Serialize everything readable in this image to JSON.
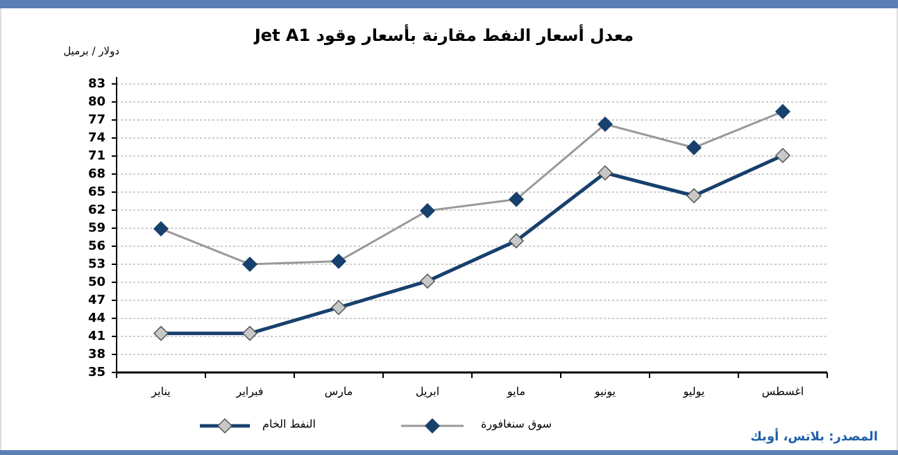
{
  "chart_data": {
    "type": "line",
    "title": "معدل أسعار النفط مقارنة بأسعار وقود Jet A1",
    "y_label": "دولار / برميل",
    "source": "المصدر: بلاتس، أوبك",
    "categories": [
      "يناير",
      "فبراير",
      "مارس",
      "ابريل",
      "مايو",
      "يونيو",
      "يوليو",
      "اغسطس"
    ],
    "series": [
      {
        "name": "النفط الخام",
        "color": "#17406d",
        "marker_color": "#c8c8c8",
        "values": [
          41.5,
          41.5,
          45.8,
          50.2,
          56.9,
          68.2,
          64.4,
          71.1
        ]
      },
      {
        "name": "سوق سنغافورة",
        "color": "#999999",
        "marker_color": "#17406d",
        "values": [
          58.9,
          53.0,
          53.5,
          61.9,
          63.8,
          76.3,
          72.4,
          78.4
        ]
      }
    ],
    "ylim": [
      35,
      83
    ],
    "yticks": [
      35,
      38,
      41,
      44,
      47,
      50,
      53,
      56,
      59,
      62,
      65,
      68,
      71,
      74,
      77,
      80,
      83
    ],
    "grid": true,
    "legend": "bottom"
  }
}
